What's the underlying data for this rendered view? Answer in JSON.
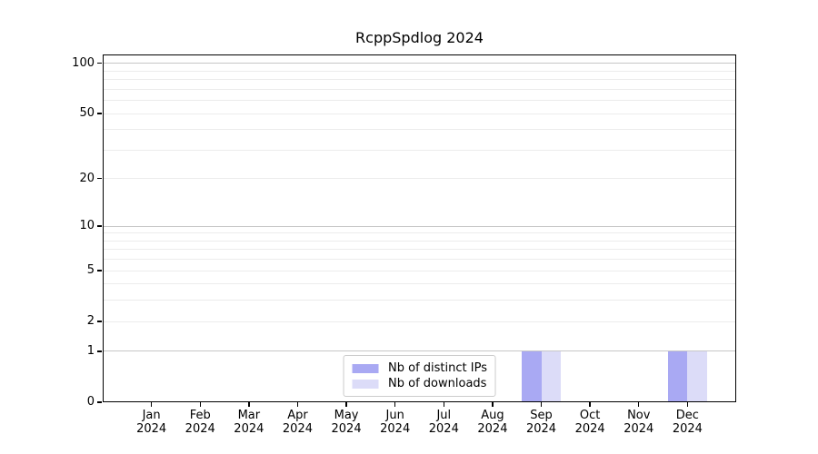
{
  "chart_data": {
    "type": "bar",
    "title": "RcppSpdlog 2024",
    "categories": [
      {
        "month": "Jan",
        "year": "2024"
      },
      {
        "month": "Feb",
        "year": "2024"
      },
      {
        "month": "Mar",
        "year": "2024"
      },
      {
        "month": "Apr",
        "year": "2024"
      },
      {
        "month": "May",
        "year": "2024"
      },
      {
        "month": "Jun",
        "year": "2024"
      },
      {
        "month": "Jul",
        "year": "2024"
      },
      {
        "month": "Aug",
        "year": "2024"
      },
      {
        "month": "Sep",
        "year": "2024"
      },
      {
        "month": "Oct",
        "year": "2024"
      },
      {
        "month": "Nov",
        "year": "2024"
      },
      {
        "month": "Dec",
        "year": "2024"
      }
    ],
    "series": [
      {
        "name": "Nb of distinct IPs",
        "color": "#a9a9f3",
        "values": [
          0,
          0,
          0,
          0,
          0,
          0,
          0,
          0,
          1,
          0,
          0,
          1
        ]
      },
      {
        "name": "Nb of downloads",
        "color": "#dcdcf8",
        "values": [
          0,
          0,
          0,
          0,
          0,
          0,
          0,
          0,
          1,
          0,
          0,
          1
        ]
      }
    ],
    "y_axis": {
      "scale": "log1p",
      "tick_values": [
        100,
        50,
        20,
        10,
        5,
        2,
        1,
        0
      ],
      "major_gridlines": [
        1,
        10,
        100
      ],
      "minor_gridlines": [
        2,
        3,
        4,
        5,
        6,
        7,
        8,
        9,
        20,
        30,
        40,
        50,
        60,
        70,
        80,
        90
      ],
      "range": [
        0,
        113
      ]
    },
    "legend": {
      "position": "lower center",
      "items": [
        "Nb of distinct IPs",
        "Nb of downloads"
      ]
    },
    "grid": "horizontal major+minor"
  },
  "colors": {
    "background": "#ffffff",
    "major_grid": "#c6c6c6",
    "minor_grid": "#ececec",
    "spine": "#000000",
    "text": "#000000",
    "legend_border": "#cccccc",
    "bar_distinct_ips": "#a9a9f3",
    "bar_downloads": "#dcdcf8"
  }
}
